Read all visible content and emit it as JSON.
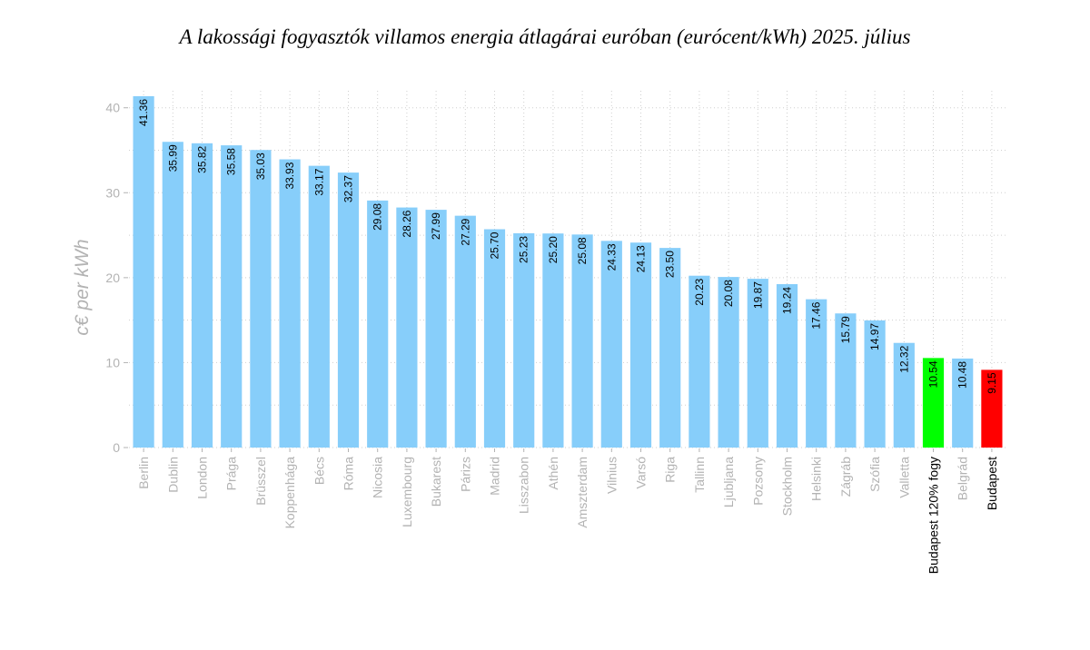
{
  "chart_data": {
    "type": "bar",
    "title": "A lakossági fogyasztók villamos energia átlagárai euróban (eurócent/kWh) 2025. július",
    "ylabel": "c€ per kWh",
    "xlabel": "",
    "ylim": [
      0,
      42
    ],
    "yticks": [
      0,
      10,
      20,
      30,
      40
    ],
    "grid": true,
    "categories": [
      "Berlin",
      "Dublin",
      "London",
      "Prága",
      "Brüsszel",
      "Koppenhága",
      "Bécs",
      "Róma",
      "Nicosia",
      "Luxembourg",
      "Bukarest",
      "Párizs",
      "Madrid",
      "Lisszabon",
      "Athén",
      "Amszterdam",
      "Vilnius",
      "Varsó",
      "Riga",
      "Tallinn",
      "Ljubljana",
      "Pozsony",
      "Stockholm",
      "Helsinki",
      "Zágráb",
      "Szófia",
      "Valletta",
      "Budapest 120% fogy",
      "Belgrád",
      "Budapest"
    ],
    "values": [
      41.36,
      35.99,
      35.82,
      35.58,
      35.03,
      33.93,
      33.17,
      32.37,
      29.08,
      28.26,
      27.99,
      27.29,
      25.7,
      25.23,
      25.2,
      25.08,
      24.33,
      24.13,
      23.5,
      20.23,
      20.08,
      19.87,
      19.24,
      17.46,
      15.79,
      14.97,
      12.32,
      10.54,
      10.48,
      9.15
    ],
    "value_labels": [
      "41.36",
      "35.99",
      "35.82",
      "35.58",
      "35.03",
      "33.93",
      "33.17",
      "32.37",
      "29.08",
      "28.26",
      "27.99",
      "27.29",
      "25.70",
      "25.23",
      "25.20",
      "25.08",
      "24.33",
      "24.13",
      "23.50",
      "20.23",
      "20.08",
      "19.87",
      "19.24",
      "17.46",
      "15.79",
      "14.97",
      "12.32",
      "10.54",
      "10.48",
      "9.15"
    ],
    "colors": {
      "default": "#87cefa",
      "Budapest 120% fogy": "#00ff00",
      "Budapest": "#ff0000"
    },
    "highlight_categories": [
      "Budapest 120% fogy",
      "Budapest"
    ]
  }
}
